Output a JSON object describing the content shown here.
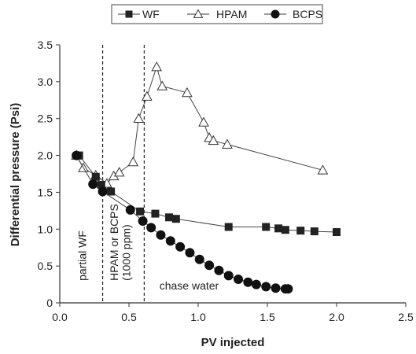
{
  "chart_data": {
    "type": "line",
    "xlabel": "PV injected",
    "ylabel": "Differential pressure (Psi)",
    "xlim": [
      0.0,
      2.5
    ],
    "ylim": [
      0,
      3.5
    ],
    "xticks": [
      "0.0",
      "0.5",
      "1.0",
      "1.5",
      "2.0",
      "2.5"
    ],
    "yticks": [
      "0",
      "0.5",
      "1.0",
      "1.5",
      "2.0",
      "2.5",
      "3.0",
      "3.5"
    ],
    "grid": false,
    "legend_position": "top",
    "series": [
      {
        "name": "WF",
        "marker": "square",
        "color": "#222222",
        "x": [
          0.14,
          0.26,
          0.3,
          0.37,
          0.58,
          0.69,
          0.79,
          0.84,
          1.22,
          1.49,
          1.58,
          1.63,
          1.74,
          1.84,
          2.0
        ],
        "y": [
          2.0,
          1.71,
          1.6,
          1.51,
          1.24,
          1.21,
          1.16,
          1.14,
          1.03,
          1.03,
          1.01,
          0.99,
          0.98,
          0.97,
          0.96
        ]
      },
      {
        "name": "HPAM",
        "marker": "triangle-open",
        "color": "#222222",
        "x": [
          0.12,
          0.17,
          0.26,
          0.34,
          0.39,
          0.43,
          0.53,
          0.57,
          0.63,
          0.7,
          0.74,
          0.92,
          1.04,
          1.08,
          1.11,
          1.21,
          1.9
        ],
        "y": [
          2.0,
          1.83,
          1.73,
          1.62,
          1.72,
          1.77,
          1.91,
          2.5,
          2.8,
          3.2,
          2.94,
          2.85,
          2.45,
          2.24,
          2.2,
          2.15,
          1.8
        ]
      },
      {
        "name": "BCPS",
        "marker": "circle",
        "color": "#222222",
        "x": [
          0.12,
          0.24,
          0.31,
          0.51,
          0.6,
          0.66,
          0.73,
          0.8,
          0.87,
          0.94,
          1.01,
          1.08,
          1.15,
          1.22,
          1.29,
          1.36,
          1.42,
          1.49,
          1.56,
          1.63,
          1.65
        ],
        "y": [
          2.0,
          1.61,
          1.51,
          1.26,
          1.11,
          1.02,
          0.92,
          0.84,
          0.76,
          0.68,
          0.59,
          0.51,
          0.44,
          0.37,
          0.32,
          0.28,
          0.25,
          0.22,
          0.2,
          0.19,
          0.19
        ]
      }
    ],
    "vlines": [
      {
        "x": 0.31,
        "style": "dashed"
      },
      {
        "x": 0.61,
        "style": "dashed"
      }
    ],
    "annotations": [
      {
        "text": "partial WF",
        "x": 0.19,
        "y": 0.3,
        "rotation": -90
      },
      {
        "text": "HPAM or BCPS",
        "x": 0.42,
        "y": 0.3,
        "rotation": -90
      },
      {
        "text": "(1000 ppm)",
        "x": 0.51,
        "y": 0.3,
        "rotation": -90
      },
      {
        "text": "chase water",
        "x": 0.72,
        "y": 0.18,
        "rotation": 0
      }
    ]
  }
}
